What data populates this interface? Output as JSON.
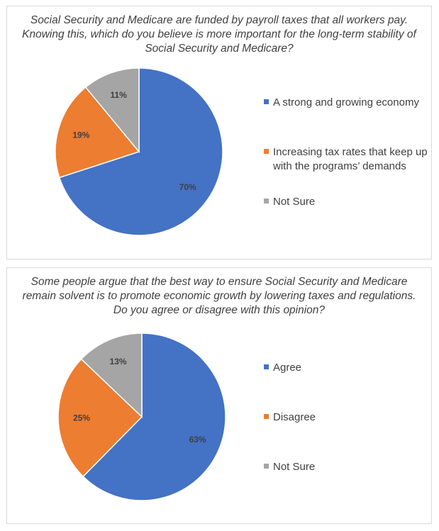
{
  "chart_data": [
    {
      "type": "pie",
      "title": "Social Security and Medicare are funded by payroll taxes that all workers pay. Knowing this, which do you believe is more important for the long-term stability of Social Security and Medicare?",
      "categories": [
        "A strong and growing economy",
        "Increasing tax rates that keep up with the programs’ demands",
        "Not Sure"
      ],
      "values": [
        70,
        19,
        11
      ],
      "labels": [
        "70%",
        "19%",
        "11%"
      ],
      "colors": [
        "#4472c4",
        "#ed7d31",
        "#a5a5a5"
      ],
      "legend_position": "right"
    },
    {
      "type": "pie",
      "title": "Some people argue that the best way to ensure Social Security and Medicare remain solvent is to promote economic growth by lowering taxes and regulations. Do you agree or disagree with this opinion?",
      "categories": [
        "Agree",
        "Disagree",
        "Not Sure"
      ],
      "values": [
        63,
        25,
        13
      ],
      "labels": [
        "63%",
        "25%",
        "13%"
      ],
      "colors": [
        "#4472c4",
        "#ed7d31",
        "#a5a5a5"
      ],
      "legend_position": "right"
    }
  ]
}
